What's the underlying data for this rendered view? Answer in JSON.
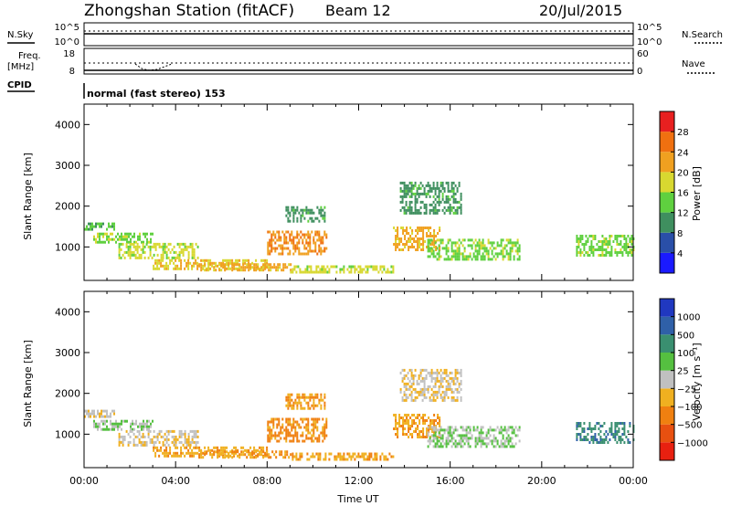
{
  "header": {
    "station": "Zhongshan Station (fitACF)",
    "beam": "Beam 12",
    "date": "20/Jul/2015"
  },
  "strip_labels": {
    "nsky": "N.Sky",
    "freq": "Freq.",
    "freq_unit": "[MHz]",
    "cpid": "CPID",
    "nsearch": "N.Search",
    "nave": "Nave",
    "nsky_ticks": [
      "10^5",
      "10^0"
    ],
    "nsearch_ticks": [
      "10^5",
      "10^0"
    ],
    "freq_ticks": [
      "18",
      "8"
    ],
    "nave_ticks": [
      "60",
      "0"
    ],
    "cpid_text": "normal (fast stereo) 153"
  },
  "x_axis": {
    "title": "Time UT",
    "ticks": [
      "00:00",
      "04:00",
      "08:00",
      "12:00",
      "16:00",
      "20:00",
      "00:00"
    ]
  },
  "panels": [
    {
      "ylabel": "Slant Range [km]",
      "yticks": [
        "1000",
        "2000",
        "3000",
        "4000"
      ],
      "colorbar_title": "Power [dB]",
      "colorbar_ticks": [
        "4",
        "8",
        "12",
        "16",
        "20",
        "24",
        "28"
      ],
      "colors": [
        "#1a1aff",
        "#2a4fa8",
        "#3f8f5f",
        "#5fd03f",
        "#d8d830",
        "#f0a020",
        "#f07010",
        "#e82020"
      ]
    },
    {
      "ylabel": "Slant Range [km]",
      "yticks": [
        "1000",
        "2000",
        "3000",
        "4000"
      ],
      "colorbar_title": "Velocity [m s⁻¹]",
      "colorbar_ticks": [
        "1000",
        "500",
        "100",
        "25",
        "−25",
        "−100",
        "−500",
        "−1000"
      ],
      "colors": [
        "#2038c0",
        "#2f60a8",
        "#3a8f70",
        "#55c040",
        "#c0c0c0",
        "#f0b020",
        "#f08010",
        "#e85010",
        "#e82010"
      ]
    }
  ],
  "chart_data": [
    {
      "type": "heatmap",
      "title": "Power [dB]",
      "xlabel": "Time UT",
      "ylabel": "Slant Range [km]",
      "xlim_hours": [
        0,
        24
      ],
      "ylim_km": [
        180,
        4500
      ],
      "clim": [
        0,
        30
      ],
      "regions": [
        {
          "t0": 0.0,
          "t1": 1.3,
          "r0": 1400,
          "r1": 1600,
          "value": 12
        },
        {
          "t0": 0.4,
          "t1": 3.0,
          "r0": 1100,
          "r1": 1350,
          "value": 14
        },
        {
          "t0": 1.5,
          "t1": 5.0,
          "r0": 700,
          "r1": 1100,
          "value": 16
        },
        {
          "t0": 3.0,
          "t1": 8.0,
          "r0": 450,
          "r1": 700,
          "value": 18
        },
        {
          "t0": 5.0,
          "t1": 9.0,
          "r0": 400,
          "r1": 600,
          "value": 20
        },
        {
          "t0": 8.0,
          "t1": 10.6,
          "r0": 800,
          "r1": 1400,
          "value": 22
        },
        {
          "t0": 8.8,
          "t1": 10.5,
          "r0": 1600,
          "r1": 2000,
          "value": 10
        },
        {
          "t0": 9.0,
          "t1": 13.5,
          "r0": 400,
          "r1": 550,
          "value": 16
        },
        {
          "t0": 13.5,
          "t1": 15.5,
          "r0": 900,
          "r1": 1500,
          "value": 20
        },
        {
          "t0": 13.8,
          "t1": 16.5,
          "r0": 1800,
          "r1": 2600,
          "value": 10
        },
        {
          "t0": 15.0,
          "t1": 19.0,
          "r0": 700,
          "r1": 1200,
          "value": 14
        },
        {
          "t0": 21.5,
          "t1": 24.0,
          "r0": 800,
          "r1": 1300,
          "value": 14
        }
      ]
    },
    {
      "type": "heatmap",
      "title": "Velocity [m s^-1]",
      "xlabel": "Time UT",
      "ylabel": "Slant Range [km]",
      "xlim_hours": [
        0,
        24
      ],
      "ylim_km": [
        180,
        4500
      ],
      "clim": [
        -1000,
        1000
      ],
      "regions": [
        {
          "t0": 0.0,
          "t1": 1.3,
          "r0": 1400,
          "r1": 1600,
          "value": -100
        },
        {
          "t0": 0.4,
          "t1": 3.0,
          "r0": 1100,
          "r1": 1350,
          "value": 100
        },
        {
          "t0": 1.5,
          "t1": 5.0,
          "r0": 700,
          "r1": 1100,
          "value": -100
        },
        {
          "t0": 3.0,
          "t1": 8.0,
          "r0": 450,
          "r1": 700,
          "value": -300
        },
        {
          "t0": 5.0,
          "t1": 9.0,
          "r0": 400,
          "r1": 600,
          "value": -300
        },
        {
          "t0": 8.0,
          "t1": 10.6,
          "r0": 800,
          "r1": 1400,
          "value": -400
        },
        {
          "t0": 8.8,
          "t1": 10.5,
          "r0": 1600,
          "r1": 2000,
          "value": -300
        },
        {
          "t0": 9.0,
          "t1": 13.5,
          "r0": 400,
          "r1": 550,
          "value": -300
        },
        {
          "t0": 13.5,
          "t1": 15.5,
          "r0": 900,
          "r1": 1500,
          "value": -300
        },
        {
          "t0": 13.8,
          "t1": 16.5,
          "r0": 1800,
          "r1": 2600,
          "value": -100
        },
        {
          "t0": 15.0,
          "t1": 19.0,
          "r0": 700,
          "r1": 1200,
          "value": 100
        },
        {
          "t0": 21.5,
          "t1": 24.0,
          "r0": 800,
          "r1": 1300,
          "value": 500
        }
      ]
    }
  ]
}
